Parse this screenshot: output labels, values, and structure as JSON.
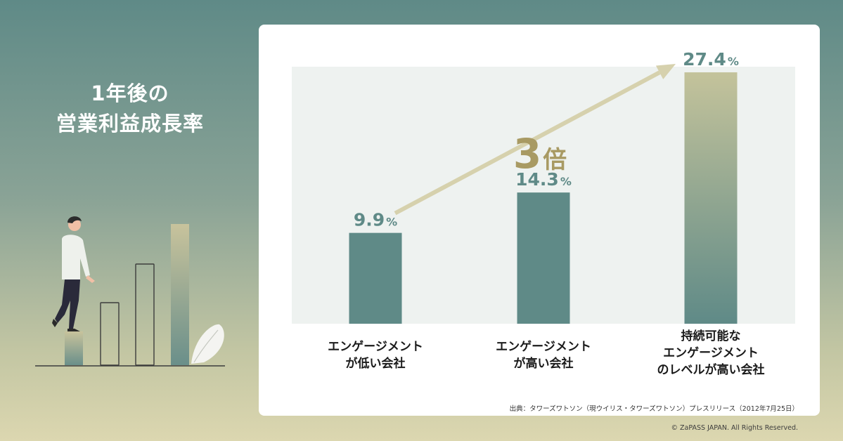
{
  "headline": {
    "line1": "1年後の",
    "line2": "営業利益成長率"
  },
  "chart_data": {
    "type": "bar",
    "categories": [
      "エンゲージメント\nが低い会社",
      "エンゲージメント\nが高い会社",
      "持続可能な\nエンゲージメント\nのレベルが高い会社"
    ],
    "values": [
      9.9,
      14.3,
      27.4
    ],
    "value_labels": [
      "9.9",
      "14.3",
      "27.4"
    ],
    "unit": "%",
    "ylim": [
      0,
      30
    ],
    "annotation": "3倍",
    "grid": false,
    "legend": "none",
    "colors": {
      "bar": "#5f8a87",
      "bar_highlight_top": "#c4c39b",
      "value_label": "#5f8a87",
      "arrow": "#d6d1ad",
      "annotation": "#a89a63"
    }
  },
  "source": "出典：タワーズワトソン（現ウイリス・タワーズワトソン）プレスリリース（2012年7月25日）",
  "copyright": "© ZaPASS JAPAN. All Rights Reserved."
}
